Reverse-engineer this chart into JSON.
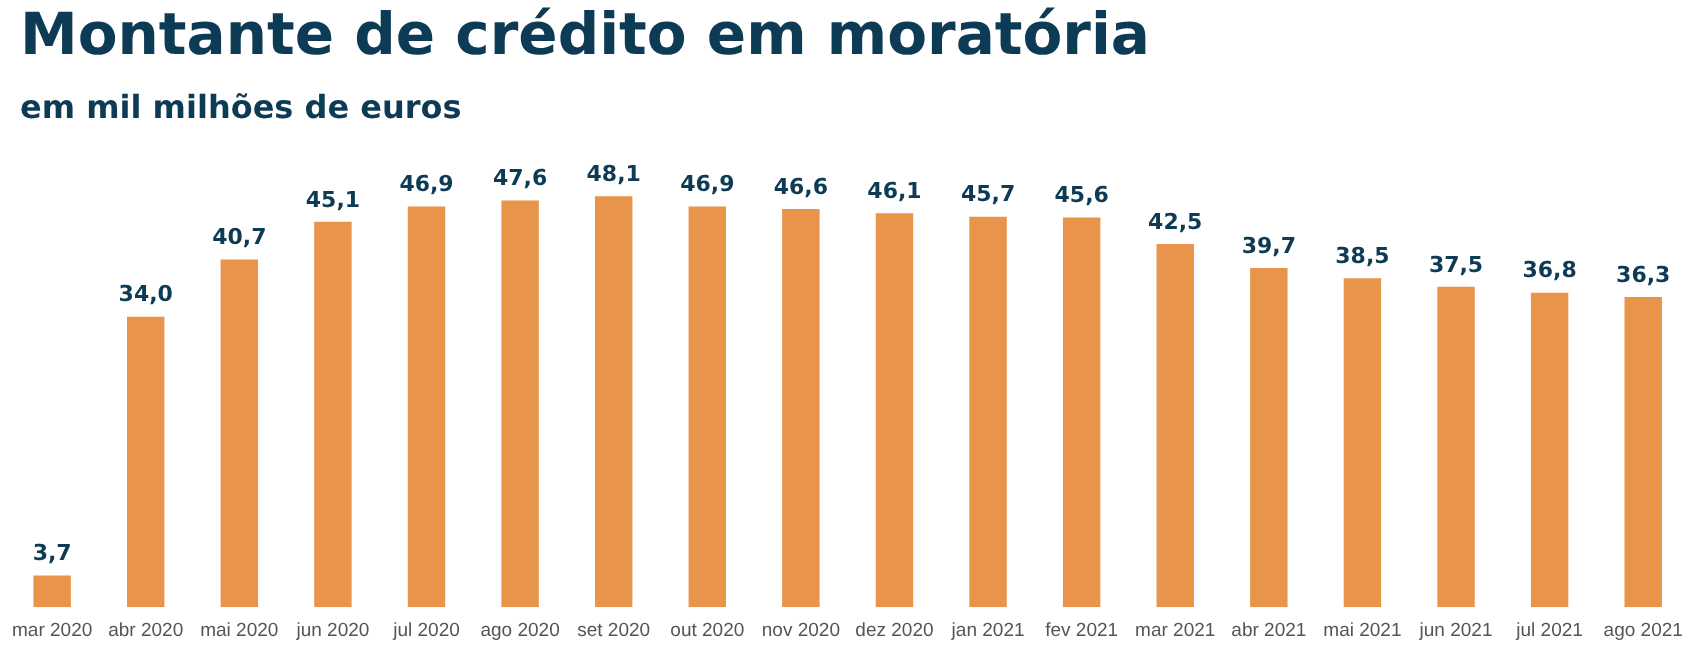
{
  "chart_data": {
    "type": "bar",
    "title": "Montante de crédito em moratória",
    "subtitle": "em mil milhões de euros",
    "categories": [
      "mar 2020",
      "abr 2020",
      "mai 2020",
      "jun 2020",
      "jul 2020",
      "ago 2020",
      "set 2020",
      "out 2020",
      "nov 2020",
      "dez 2020",
      "jan 2021",
      "fev 2021",
      "mar 2021",
      "abr 2021",
      "mai 2021",
      "jun 2021",
      "jul 2021",
      "ago 2021"
    ],
    "values": [
      3.7,
      34.0,
      40.7,
      45.1,
      46.9,
      47.6,
      48.1,
      46.9,
      46.6,
      46.1,
      45.7,
      45.6,
      42.5,
      39.7,
      38.5,
      37.5,
      36.8,
      36.3
    ],
    "value_labels": [
      "3,7",
      "34,0",
      "40,7",
      "45,1",
      "46,9",
      "47,6",
      "48,1",
      "46,9",
      "46,6",
      "46,1",
      "45,7",
      "45,6",
      "42,5",
      "39,7",
      "38,5",
      "37,5",
      "36,8",
      "36,3"
    ],
    "color": "#e8944a",
    "grid": false,
    "legend": false
  }
}
